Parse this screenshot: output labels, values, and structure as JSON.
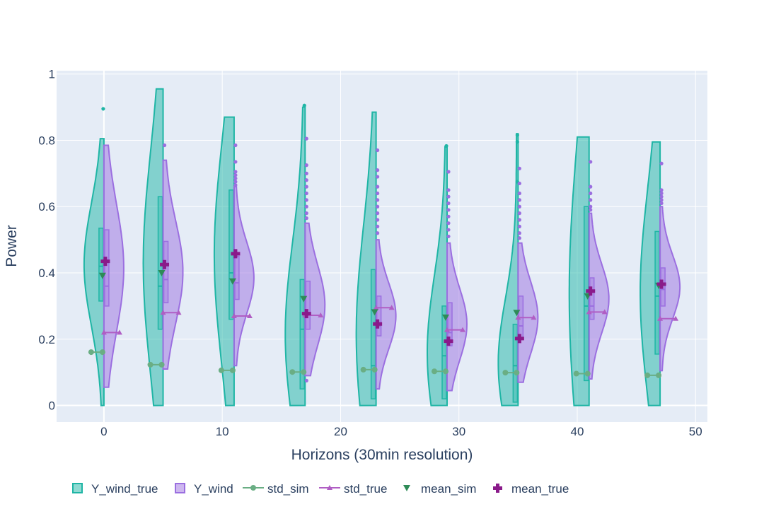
{
  "colors": {
    "plot_bg": "#e5ecf6",
    "grid": "#ffffff",
    "wind_true": "#1fb5a5",
    "wind": "#9b6fe0",
    "std_sim": "#6aae84",
    "std_true": "#b05ec4",
    "mean_sim": "#2e8b57",
    "mean_true": "#8a1a8a",
    "text": "#2a3f5f"
  },
  "chart_data": {
    "type": "violin",
    "xlabel": "Horizons (30min resolution)",
    "ylabel": "Power",
    "xlim": [
      -4,
      51
    ],
    "ylim": [
      -0.05,
      1.01
    ],
    "xticks": [
      0,
      10,
      20,
      30,
      40,
      50
    ],
    "yticks": [
      0,
      0.2,
      0.4,
      0.6,
      0.8,
      1
    ],
    "grid": true,
    "legend_position": "bottom",
    "legend": [
      "Y_wind_true",
      "Y_wind",
      "std_sim",
      "std_true",
      "mean_sim",
      "mean_true"
    ],
    "horizons": [
      0,
      5,
      11,
      17,
      23,
      29,
      35,
      41,
      47
    ],
    "Y_wind_true": [
      {
        "x": 0,
        "min": 0.0,
        "max": 0.805,
        "q1": 0.315,
        "median": 0.42,
        "q3": 0.535,
        "outliers": [
          0.895
        ]
      },
      {
        "x": 5,
        "min": 0.0,
        "max": 0.955,
        "q1": 0.23,
        "median": 0.36,
        "q3": 0.63,
        "outliers": []
      },
      {
        "x": 11,
        "min": 0.0,
        "max": 0.87,
        "q1": 0.26,
        "median": 0.4,
        "q3": 0.65,
        "outliers": []
      },
      {
        "x": 17,
        "min": 0.0,
        "max": 0.9,
        "q1": 0.05,
        "median": 0.23,
        "q3": 0.38,
        "outliers": [
          0.905
        ]
      },
      {
        "x": 23,
        "min": 0.0,
        "max": 0.885,
        "q1": 0.02,
        "median": 0.12,
        "q3": 0.41,
        "outliers": []
      },
      {
        "x": 29,
        "min": 0.0,
        "max": 0.78,
        "q1": 0.02,
        "median": 0.15,
        "q3": 0.3,
        "outliers": [
          0.783
        ]
      },
      {
        "x": 35,
        "min": 0.0,
        "max": 0.82,
        "q1": 0.01,
        "median": 0.12,
        "q3": 0.245,
        "outliers": [
          0.816,
          0.795,
          0.675
        ]
      },
      {
        "x": 41,
        "min": 0.0,
        "max": 0.81,
        "q1": 0.075,
        "median": 0.3,
        "q3": 0.6,
        "outliers": []
      },
      {
        "x": 47,
        "min": 0.0,
        "max": 0.795,
        "q1": 0.155,
        "median": 0.33,
        "q3": 0.525,
        "outliers": []
      }
    ],
    "Y_wind": [
      {
        "x": 0,
        "min": 0.055,
        "max": 0.785,
        "q1": 0.3,
        "median": 0.36,
        "q3": 0.53,
        "outliers": []
      },
      {
        "x": 5,
        "min": 0.11,
        "max": 0.74,
        "q1": 0.31,
        "median": 0.38,
        "q3": 0.495,
        "outliers": [
          0.785
        ]
      },
      {
        "x": 11,
        "min": 0.12,
        "max": 0.66,
        "q1": 0.32,
        "median": 0.37,
        "q3": 0.45,
        "outliers": [
          0.785,
          0.735,
          0.705,
          0.695,
          0.685,
          0.675,
          0.665
        ]
      },
      {
        "x": 17,
        "min": 0.09,
        "max": 0.55,
        "q1": 0.23,
        "median": 0.28,
        "q3": 0.375,
        "outliers": [
          0.075,
          0.805,
          0.725,
          0.7,
          0.68,
          0.66,
          0.64,
          0.62,
          0.6,
          0.58,
          0.565
        ]
      },
      {
        "x": 23,
        "min": 0.05,
        "max": 0.5,
        "q1": 0.21,
        "median": 0.24,
        "q3": 0.33,
        "outliers": [
          0.77,
          0.71,
          0.69,
          0.66,
          0.64,
          0.62,
          0.6,
          0.58,
          0.56,
          0.54,
          0.52
        ]
      },
      {
        "x": 29,
        "min": 0.045,
        "max": 0.49,
        "q1": 0.18,
        "median": 0.22,
        "q3": 0.31,
        "outliers": [
          0.705,
          0.65,
          0.63,
          0.61,
          0.59,
          0.57,
          0.55,
          0.53,
          0.51
        ]
      },
      {
        "x": 35,
        "min": 0.07,
        "max": 0.49,
        "q1": 0.2,
        "median": 0.24,
        "q3": 0.33,
        "outliers": [
          0.715,
          0.67,
          0.64,
          0.62,
          0.6,
          0.58,
          0.56,
          0.54,
          0.52,
          0.505
        ]
      },
      {
        "x": 41,
        "min": 0.08,
        "max": 0.58,
        "q1": 0.26,
        "median": 0.3,
        "q3": 0.385,
        "outliers": [
          0.735,
          0.66,
          0.64,
          0.62,
          0.6,
          0.59
        ]
      },
      {
        "x": 47,
        "min": 0.105,
        "max": 0.6,
        "q1": 0.3,
        "median": 0.35,
        "q3": 0.415,
        "outliers": [
          0.73,
          0.65,
          0.64,
          0.63,
          0.62,
          0.61
        ]
      }
    ],
    "std_sim": [
      0.161,
      0.123,
      0.106,
      0.101,
      0.108,
      0.103,
      0.099,
      0.096,
      0.091
    ],
    "std_true": [
      0.22,
      0.28,
      0.27,
      0.272,
      0.295,
      0.228,
      0.265,
      0.282,
      0.262
    ],
    "mean_sim": [
      0.392,
      0.4,
      0.375,
      0.322,
      0.282,
      0.266,
      0.28,
      0.33,
      0.362
    ],
    "mean_true": [
      0.435,
      0.425,
      0.458,
      0.277,
      0.246,
      0.194,
      0.202,
      0.345,
      0.366
    ]
  }
}
